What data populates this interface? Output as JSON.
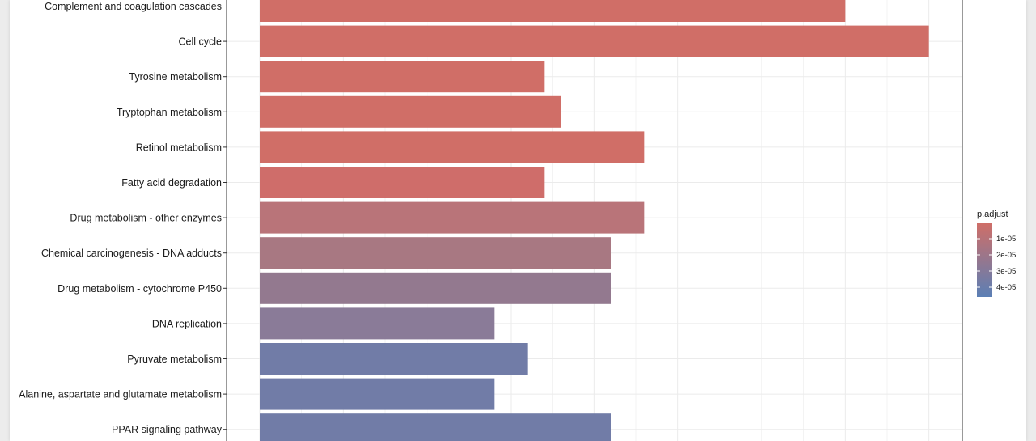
{
  "chart_data": {
    "type": "bar",
    "orientation": "horizontal",
    "title": "",
    "xlabel": "",
    "ylabel": "",
    "xlim": [
      0,
      42
    ],
    "grid": true,
    "categories": [
      "Complement and coagulation cascades",
      "Cell cycle",
      "Tyrosine metabolism",
      "Tryptophan metabolism",
      "Retinol metabolism",
      "Fatty acid degradation",
      "Drug metabolism - other enzymes",
      "Chemical carcinogenesis - DNA adducts",
      "Drug metabolism - cytochrome P450",
      "DNA replication",
      "Pyruvate metabolism",
      "Alanine, aspartate and glutamate metabolism",
      "PPAR signaling pathway"
    ],
    "values": [
      35,
      40,
      17,
      18,
      23,
      17,
      23,
      21,
      21,
      14,
      16,
      14,
      21
    ],
    "bar_colors": [
      "#d06e67",
      "#d06e67",
      "#d06e67",
      "#d06e67",
      "#d06e67",
      "#cf6d6a",
      "#b97479",
      "#a87882",
      "#93798f",
      "#8a7b98",
      "#717ca7",
      "#717ca7",
      "#717ca7"
    ],
    "legend": {
      "title": "p.adjust",
      "ticks": [
        "1e-05",
        "2e-05",
        "3e-05",
        "4e-05"
      ],
      "color_low": "#d06e67",
      "color_high": "#5b7fb5",
      "placement": "right"
    }
  }
}
